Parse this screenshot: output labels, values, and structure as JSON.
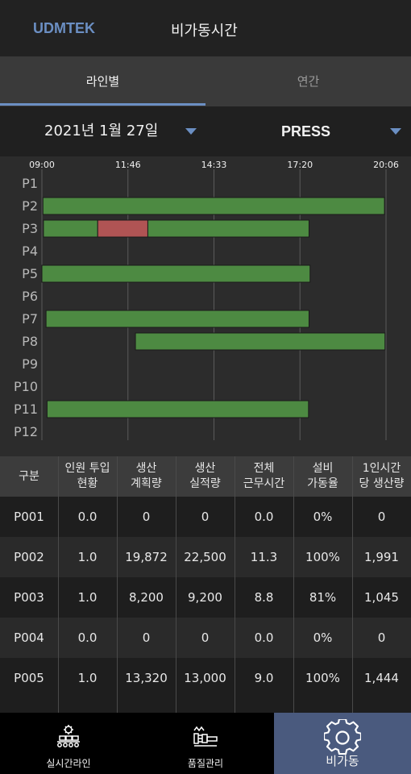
{
  "header": {
    "brand": "UDMTEK",
    "title": "비가동시간"
  },
  "tabs": [
    {
      "label": "라인별"
    },
    {
      "label": "연간"
    }
  ],
  "filters": {
    "date": "2021년 1월 27일",
    "line": "PRESS"
  },
  "colors": {
    "accent": "#6b8fc3",
    "running": "#4d8a42",
    "stopped": "#b05454"
  },
  "gantt": {
    "time_ticks": [
      "09:00",
      "11:46",
      "14:33",
      "17:20",
      "20:06"
    ],
    "time_range_minutes": [
      540,
      1206
    ],
    "rows": [
      {
        "label": "P1",
        "segments": []
      },
      {
        "label": "P2",
        "segments": [
          {
            "start": 542,
            "end": 1203,
            "state": "running"
          }
        ]
      },
      {
        "label": "P3",
        "segments": [
          {
            "start": 543,
            "end": 648,
            "state": "running"
          },
          {
            "start": 648,
            "end": 745,
            "state": "stopped"
          },
          {
            "start": 745,
            "end": 1057,
            "state": "running"
          }
        ]
      },
      {
        "label": "P4",
        "segments": []
      },
      {
        "label": "P5",
        "segments": [
          {
            "start": 540,
            "end": 1059,
            "state": "running"
          }
        ]
      },
      {
        "label": "P6",
        "segments": []
      },
      {
        "label": "P7",
        "segments": [
          {
            "start": 548,
            "end": 1057,
            "state": "running"
          }
        ]
      },
      {
        "label": "P8",
        "segments": [
          {
            "start": 721,
            "end": 1204,
            "state": "running"
          }
        ]
      },
      {
        "label": "P9",
        "segments": []
      },
      {
        "label": "P10",
        "segments": []
      },
      {
        "label": "P11",
        "segments": [
          {
            "start": 550,
            "end": 1056,
            "state": "running"
          }
        ]
      },
      {
        "label": "P12",
        "segments": []
      }
    ]
  },
  "table": {
    "headers": [
      "구분",
      "인원 투입\n현황",
      "생산\n계획량",
      "생산\n실적량",
      "전체\n근무시간",
      "설비\n가동율",
      "1인시간\n당 생산량"
    ],
    "rows": [
      [
        "P001",
        "0.0",
        "0",
        "0",
        "0.0",
        "0%",
        "0"
      ],
      [
        "P002",
        "1.0",
        "19,872",
        "22,500",
        "11.3",
        "100%",
        "1,991"
      ],
      [
        "P003",
        "1.0",
        "8,200",
        "9,200",
        "8.8",
        "81%",
        "1,045"
      ],
      [
        "P004",
        "0.0",
        "0",
        "0",
        "0.0",
        "0%",
        "0"
      ],
      [
        "P005",
        "1.0",
        "13,320",
        "13,000",
        "9.0",
        "100%",
        "1,444"
      ]
    ]
  },
  "bottom_nav": [
    {
      "label": "실시간라인",
      "icon": "factory-line-icon"
    },
    {
      "label": "품질관리",
      "icon": "quality-control-icon"
    },
    {
      "label": "비가동",
      "icon": "gear-icon"
    }
  ]
}
